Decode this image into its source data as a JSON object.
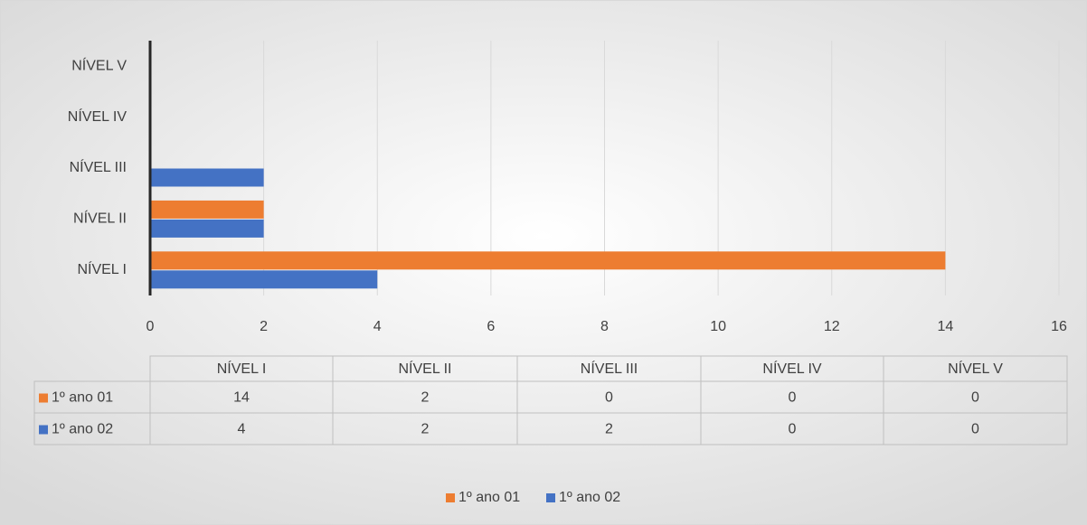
{
  "chart_data": {
    "type": "bar",
    "orientation": "horizontal",
    "categories": [
      "NÍVEL I",
      "NÍVEL II",
      "NÍVEL III",
      "NÍVEL IV",
      "NÍVEL V"
    ],
    "series": [
      {
        "name": "1º ano 01",
        "color": "#ed7d31",
        "values": [
          14,
          2,
          0,
          0,
          0
        ]
      },
      {
        "name": "1º ano 02",
        "color": "#4472c4",
        "values": [
          4,
          2,
          2,
          0,
          0
        ]
      }
    ],
    "xlim": [
      0,
      16
    ],
    "xticks": [
      0,
      2,
      4,
      6,
      8,
      10,
      12,
      14,
      16
    ],
    "grid": true,
    "data_table": true,
    "legend": "bottom"
  }
}
